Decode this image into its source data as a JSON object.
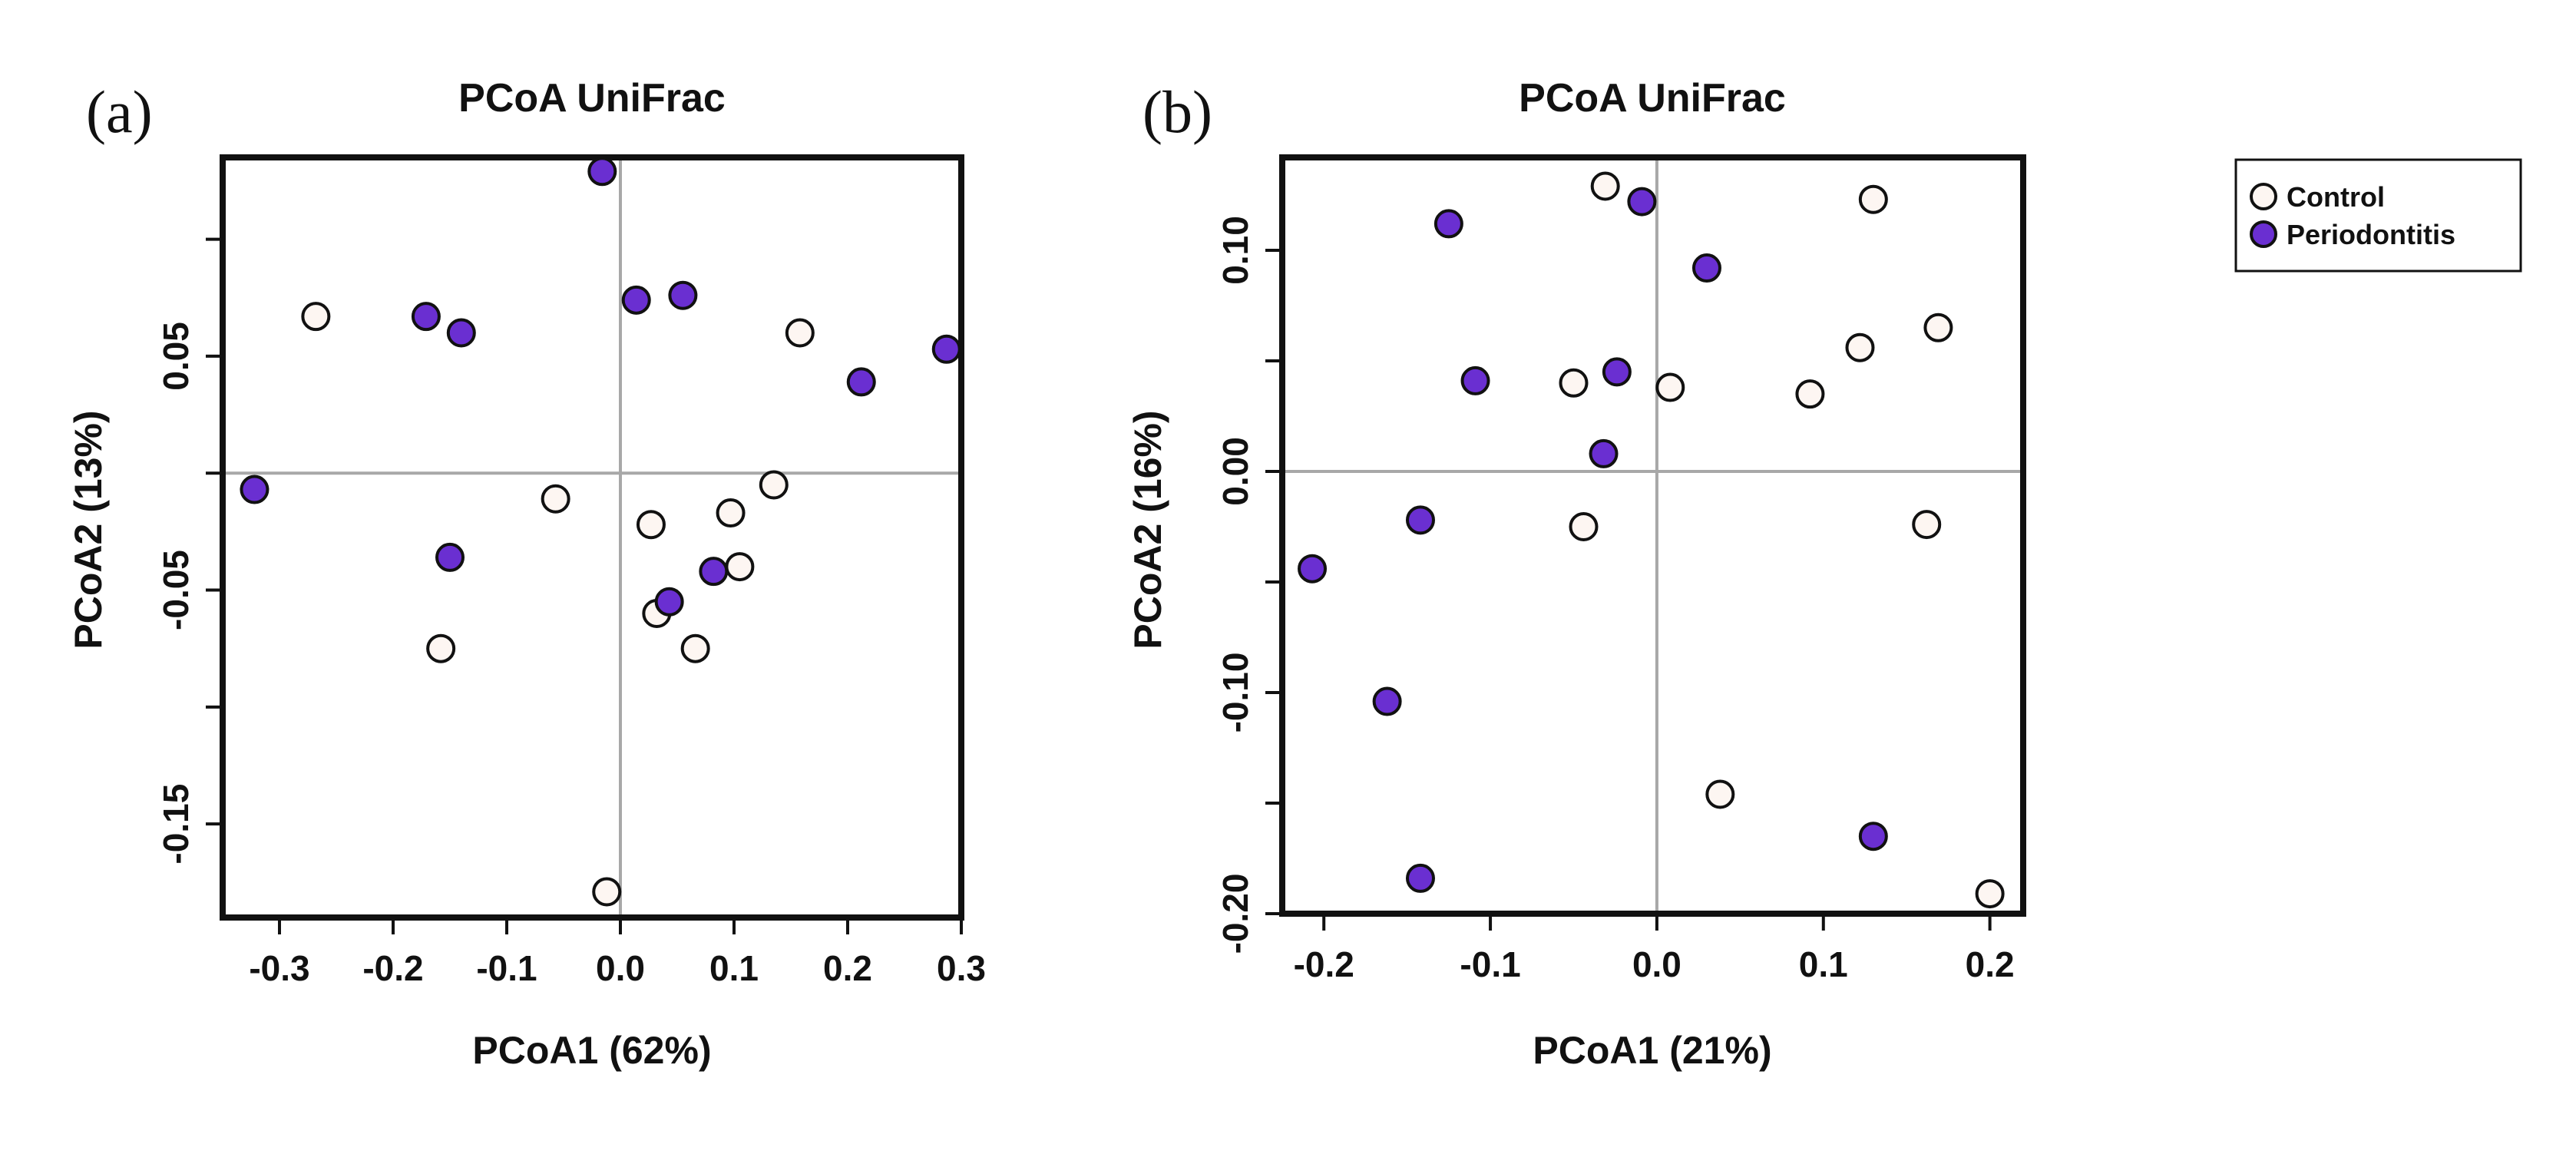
{
  "chart_data": [
    {
      "type": "scatter",
      "panel_label": "(a)",
      "title": "PCoA UniFrac",
      "xlabel": "PCoA1 (62%)",
      "ylabel": "PCoA2 (13%)",
      "xlim": [
        -0.35,
        0.3
      ],
      "ylim": [
        -0.19,
        0.135
      ],
      "xticks": [
        -0.3,
        -0.2,
        -0.1,
        0.0,
        0.1,
        0.2,
        0.3
      ],
      "xtick_labels": [
        "-0.3",
        "-0.2",
        "-0.1",
        "0.0",
        "0.1",
        "0.2",
        "0.3"
      ],
      "yticks": [
        -0.15,
        -0.05,
        0.05
      ],
      "ytick_labels": [
        "-0.15",
        "-0.05",
        "0.05"
      ],
      "yticks_unlabeled": [
        -0.1,
        0.0,
        0.1
      ],
      "reference_lines": {
        "x": 0,
        "y": 0
      },
      "series": [
        {
          "name": "Control",
          "points": [
            {
              "x": -0.268,
              "y": 0.067
            },
            {
              "x": -0.057,
              "y": -0.011
            },
            {
              "x": -0.158,
              "y": -0.075
            },
            {
              "x": 0.027,
              "y": -0.022
            },
            {
              "x": 0.032,
              "y": -0.06
            },
            {
              "x": 0.066,
              "y": -0.075
            },
            {
              "x": 0.097,
              "y": -0.017
            },
            {
              "x": 0.105,
              "y": -0.04
            },
            {
              "x": 0.135,
              "y": -0.005
            },
            {
              "x": 0.158,
              "y": 0.06
            },
            {
              "x": -0.012,
              "y": -0.179
            }
          ]
        },
        {
          "name": "Periodontitis",
          "points": [
            {
              "x": -0.016,
              "y": 0.129
            },
            {
              "x": -0.171,
              "y": 0.067
            },
            {
              "x": -0.14,
              "y": 0.06
            },
            {
              "x": 0.014,
              "y": 0.074
            },
            {
              "x": 0.055,
              "y": 0.076
            },
            {
              "x": 0.212,
              "y": 0.039
            },
            {
              "x": 0.287,
              "y": 0.053
            },
            {
              "x": -0.322,
              "y": -0.007
            },
            {
              "x": -0.15,
              "y": -0.036
            },
            {
              "x": 0.043,
              "y": -0.055
            },
            {
              "x": 0.082,
              "y": -0.042
            }
          ]
        }
      ]
    },
    {
      "type": "scatter",
      "panel_label": "(b)",
      "title": "PCoA UniFrac",
      "xlabel": "PCoA1 (21%)",
      "ylabel": "PCoA2 (16%)",
      "xlim": [
        -0.225,
        0.22
      ],
      "ylim": [
        -0.2,
        0.142
      ],
      "xticks": [
        -0.2,
        -0.1,
        0.0,
        0.1,
        0.2
      ],
      "xtick_labels": [
        "-0.2",
        "-0.1",
        "0.0",
        "0.1",
        "0.2"
      ],
      "yticks": [
        -0.2,
        -0.1,
        0.0,
        0.1
      ],
      "ytick_labels": [
        "-0.20",
        "-0.10",
        "0.00",
        "0.10"
      ],
      "yticks_unlabeled": [
        -0.15,
        -0.05,
        0.05
      ],
      "reference_lines": {
        "x": 0,
        "y": 0
      },
      "series": [
        {
          "name": "Control",
          "points": [
            {
              "x": -0.031,
              "y": 0.129
            },
            {
              "x": 0.13,
              "y": 0.123
            },
            {
              "x": -0.05,
              "y": 0.04
            },
            {
              "x": 0.008,
              "y": 0.038
            },
            {
              "x": 0.092,
              "y": 0.035
            },
            {
              "x": 0.122,
              "y": 0.056
            },
            {
              "x": 0.169,
              "y": 0.065
            },
            {
              "x": -0.044,
              "y": -0.025
            },
            {
              "x": 0.162,
              "y": -0.024
            },
            {
              "x": 0.038,
              "y": -0.146
            },
            {
              "x": 0.2,
              "y": -0.191
            }
          ]
        },
        {
          "name": "Periodontitis",
          "points": [
            {
              "x": -0.125,
              "y": 0.112
            },
            {
              "x": -0.009,
              "y": 0.122
            },
            {
              "x": 0.03,
              "y": 0.092
            },
            {
              "x": -0.109,
              "y": 0.041
            },
            {
              "x": -0.024,
              "y": 0.045
            },
            {
              "x": -0.032,
              "y": 0.008
            },
            {
              "x": -0.142,
              "y": -0.022
            },
            {
              "x": -0.207,
              "y": -0.044
            },
            {
              "x": -0.162,
              "y": -0.104
            },
            {
              "x": -0.142,
              "y": -0.184
            },
            {
              "x": 0.13,
              "y": -0.165
            }
          ]
        }
      ]
    }
  ],
  "legend": {
    "placement": "top-right",
    "items": [
      {
        "label": "Control",
        "fill": "#fdf6f2"
      },
      {
        "label": "Periodontitis",
        "fill": "#6a2fd1"
      }
    ]
  },
  "colors": {
    "control_fill": "#fdf6f2",
    "periodontitis_fill": "#6a2fd1",
    "marker_stroke": "#111111",
    "reference_line": "#a8a8a8",
    "frame": "#111111"
  }
}
